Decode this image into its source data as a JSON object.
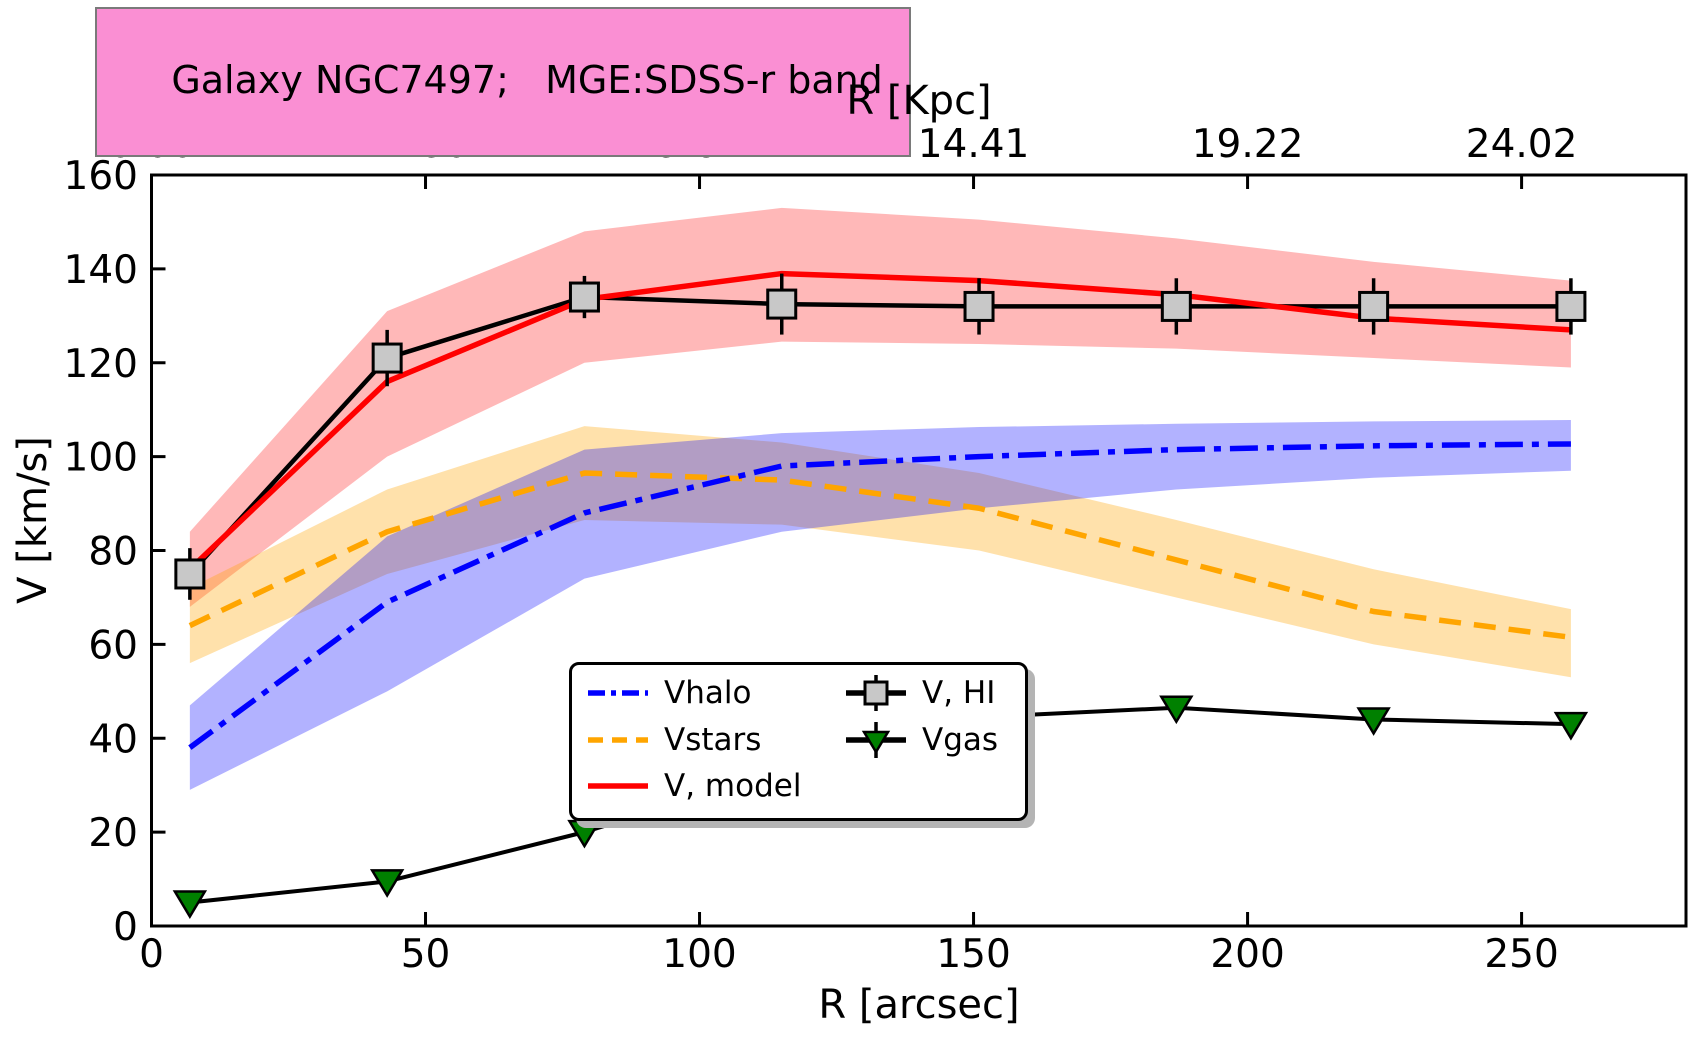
{
  "title": {
    "text": "Galaxy NGC7497;   MGE:SDSS-r band",
    "background": "#fa8fd3",
    "border_color": "#7a7a7a"
  },
  "axes": {
    "top": {
      "label": "R [Kpc]",
      "ticks": [
        "0.00",
        "4.80",
        "9.61",
        "14.41",
        "19.22",
        "24.02"
      ],
      "tick_positions_arcsec": [
        0,
        50,
        100,
        150,
        200,
        250
      ]
    },
    "bottom": {
      "label": "R [arcsec]",
      "ticks": [
        "0",
        "50",
        "100",
        "150",
        "200",
        "250"
      ],
      "tick_values": [
        0,
        50,
        100,
        150,
        200,
        250
      ],
      "range": [
        0,
        280
      ]
    },
    "left": {
      "label": "V [km/s]",
      "ticks": [
        "0",
        "20",
        "40",
        "60",
        "80",
        "100",
        "120",
        "140",
        "160"
      ],
      "tick_values": [
        0,
        20,
        40,
        60,
        80,
        100,
        120,
        140,
        160
      ],
      "range": [
        0,
        160
      ]
    }
  },
  "legend": {
    "entries": [
      {
        "label": "Vhalo",
        "series": "Vhalo",
        "col": 0,
        "row": 0
      },
      {
        "label": "Vstars",
        "series": "Vstars",
        "col": 0,
        "row": 1
      },
      {
        "label": "V, model",
        "series": "V_model",
        "col": 0,
        "row": 2
      },
      {
        "label": "V, HI",
        "series": "V_HI",
        "col": 1,
        "row": 0
      },
      {
        "label": "Vgas",
        "series": "Vgas",
        "col": 1,
        "row": 1
      }
    ]
  },
  "chart_data": {
    "type": "line",
    "title": "Galaxy NGC7497;   MGE:SDSS-r band",
    "xlabel": "R [arcsec]",
    "xlabel_top": "R [Kpc]",
    "ylabel": "V [km/s]",
    "xlim_arcsec": [
      0,
      280
    ],
    "ylim_kms": [
      0,
      160
    ],
    "kpc_per_arcsec": 0.0961,
    "grid": false,
    "legend_position": "lower center-right inside axes",
    "x_arcsec": [
      7,
      43,
      79,
      115,
      151,
      187,
      223,
      259
    ],
    "series": [
      {
        "id": "Vhalo",
        "name": "Vhalo",
        "style": "dashdot",
        "color": "#0000ff",
        "band_color": "rgba(0,0,255,0.30)",
        "values": [
          38,
          69,
          88,
          98,
          100,
          101.5,
          102.3,
          102.7
        ],
        "band_lower": [
          29,
          50,
          74,
          84,
          89,
          93,
          95.5,
          97
        ],
        "band_upper": [
          47,
          83,
          101.5,
          105,
          106.3,
          107,
          107.5,
          107.8
        ]
      },
      {
        "id": "Vstars",
        "name": "Vstars",
        "style": "dashed",
        "color": "#ffa500",
        "band_color": "rgba(255,165,0,0.33)",
        "values": [
          64,
          84,
          96.5,
          95,
          89,
          78,
          67,
          61.5
        ],
        "band_lower": [
          56,
          75,
          86.5,
          85.5,
          80,
          70,
          60,
          53
        ],
        "band_upper": [
          72,
          93,
          106.5,
          103,
          96.5,
          86.5,
          76,
          67.5
        ]
      },
      {
        "id": "V_model",
        "name": "V, model",
        "style": "solid",
        "color": "#ff0000",
        "band_color": "rgba(255,0,0,0.28)",
        "values": [
          76,
          116,
          133.5,
          139,
          137.5,
          134.5,
          129.5,
          127
        ],
        "band_lower": [
          68,
          100,
          120,
          124.5,
          124,
          123,
          121,
          119
        ],
        "band_upper": [
          84,
          131,
          148,
          153,
          150.5,
          146.5,
          141.5,
          137.5
        ]
      },
      {
        "id": "V_HI",
        "name": "V, HI",
        "style": "solid",
        "color": "#000000",
        "marker": "square",
        "marker_fill": "#c8c8c8",
        "values": [
          75,
          121,
          134,
          132.5,
          132,
          132,
          132,
          132
        ],
        "yerr": [
          5.5,
          6,
          4.5,
          6.5,
          6,
          6,
          6,
          6
        ]
      },
      {
        "id": "Vgas",
        "name": "Vgas",
        "style": "solid",
        "color": "#000000",
        "marker": "triangle-down",
        "marker_fill": "#008000",
        "values": [
          5,
          9.5,
          20,
          33,
          44.5,
          46.5,
          44,
          43
        ],
        "markers_hidden_behind_legend_indices": [
          3,
          4
        ]
      }
    ]
  }
}
